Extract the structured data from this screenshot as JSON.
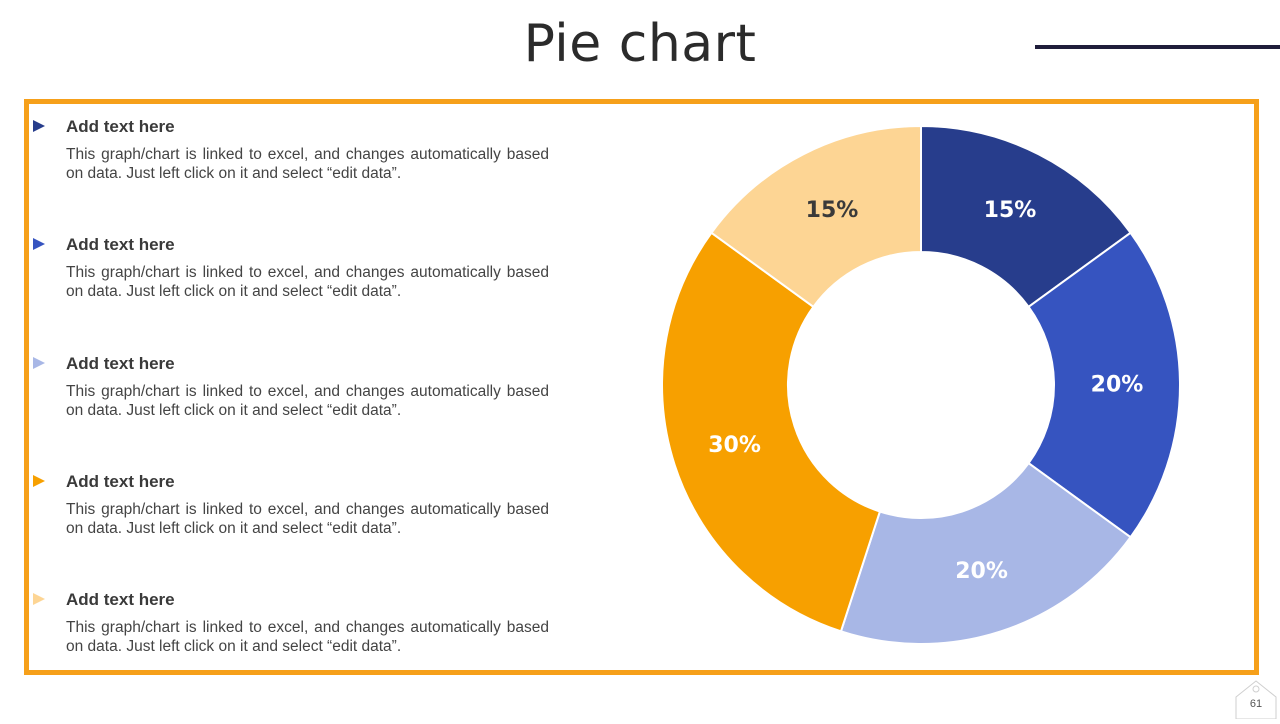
{
  "title": "Pie chart",
  "page_number": "61",
  "legend_items": [
    {
      "heading": "Add text here",
      "body": "This graph/chart is linked to excel, and changes automatically based on data. Just left click on it and select “edit data”.",
      "color": "#273d8c"
    },
    {
      "heading": "Add text here",
      "body": "This graph/chart is linked to excel, and changes automatically based on data. Just left click on it and select “edit data”.",
      "color": "#3654c0"
    },
    {
      "heading": "Add text here",
      "body": "This graph/chart is linked to excel, and changes automatically based on data. Just left click on it and select “edit data”.",
      "color": "#a8b7e6"
    },
    {
      "heading": "Add text here",
      "body": "This graph/chart is linked to excel, and changes automatically based on data. Just left click on it and select “edit data”.",
      "color": "#f7a000"
    },
    {
      "heading": "Add text here",
      "body": "This graph/chart is linked to excel, and changes automatically based on data. Just left click on it and select “edit data”.",
      "color": "#fdd594"
    }
  ],
  "chart_data": {
    "type": "pie",
    "donut": true,
    "start": "top",
    "direction": "clockwise",
    "slices": [
      {
        "label": "15%",
        "value": 15,
        "color": "#273d8c",
        "label_color": "#ffffff"
      },
      {
        "label": "20%",
        "value": 20,
        "color": "#3654c0",
        "label_color": "#ffffff"
      },
      {
        "label": "20%",
        "value": 20,
        "color": "#a8b7e6",
        "label_color": "#ffffff"
      },
      {
        "label": "30%",
        "value": 30,
        "color": "#f7a000",
        "label_color": "#ffffff"
      },
      {
        "label": "15%",
        "value": 15,
        "color": "#fdd594",
        "label_color": "#3a3a3a"
      }
    ]
  }
}
